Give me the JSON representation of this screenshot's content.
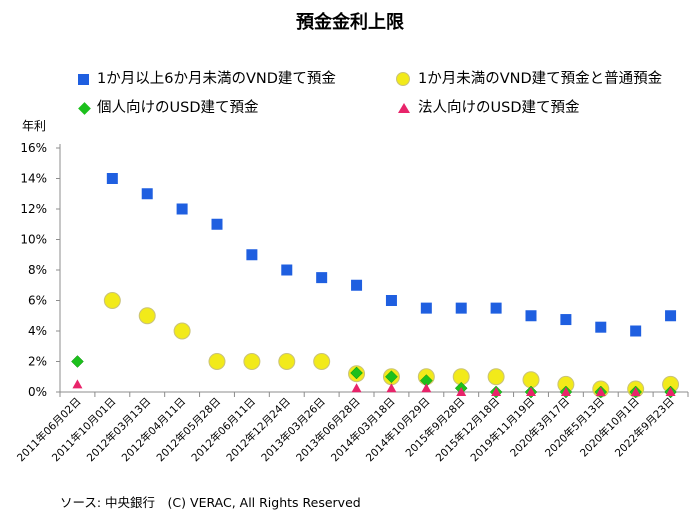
{
  "chart_data": {
    "type": "scatter",
    "title": "預金金利上限",
    "ylabel": "年利",
    "ylim": [
      0,
      16
    ],
    "y_ticks": [
      "0%",
      "2%",
      "4%",
      "6%",
      "8%",
      "10%",
      "12%",
      "14%",
      "16%"
    ],
    "grid": false,
    "legend_position": "top",
    "categories": [
      "2011年06月02日",
      "2011年10月01日",
      "2012年03月13日",
      "2012年04月11日",
      "2012年05月28日",
      "2012年06月11日",
      "2012年12月24日",
      "2013年03月26日",
      "2013年06月28日",
      "2014年03月18日",
      "2014年10月29日",
      "2015年9月28日",
      "2015年12月18日",
      "2019年11月19日",
      "2020年3月17日",
      "2020年5月13日",
      "2020年10月1日",
      "2022年9月23日"
    ],
    "series": [
      {
        "name": "1か月以上6か月未満のVND建て預金",
        "marker": "square",
        "color": "#1F5FE0",
        "values": [
          null,
          14,
          13,
          12,
          11,
          9,
          8,
          7.5,
          7,
          6,
          5.5,
          5.5,
          5.5,
          5,
          4.75,
          4.25,
          4,
          5
        ]
      },
      {
        "name": "1か月未満のVND建て預金と普通預金",
        "marker": "circle",
        "color": "#F2EA1A",
        "values": [
          null,
          6,
          5,
          4,
          2,
          2,
          2,
          2,
          1.2,
          1,
          1,
          1,
          1,
          0.8,
          0.5,
          0.2,
          0.2,
          0.5
        ]
      },
      {
        "name": "個人向けのUSD建て預金",
        "marker": "diamond",
        "color": "#1CC01C",
        "values": [
          2,
          null,
          null,
          null,
          null,
          null,
          null,
          null,
          1.25,
          1,
          0.75,
          0.25,
          0,
          0,
          0,
          0,
          0,
          0
        ]
      },
      {
        "name": "法人向けのUSD建て預金",
        "marker": "triangle",
        "color": "#E8246A",
        "values": [
          0.5,
          null,
          null,
          null,
          null,
          null,
          null,
          null,
          0.25,
          0.25,
          0.25,
          0,
          0,
          0,
          0,
          0,
          0,
          0
        ]
      }
    ]
  },
  "ylabel_title": "年利",
  "source": "ソース: 中央銀行　(C) VERAC, All Rights Reserved"
}
